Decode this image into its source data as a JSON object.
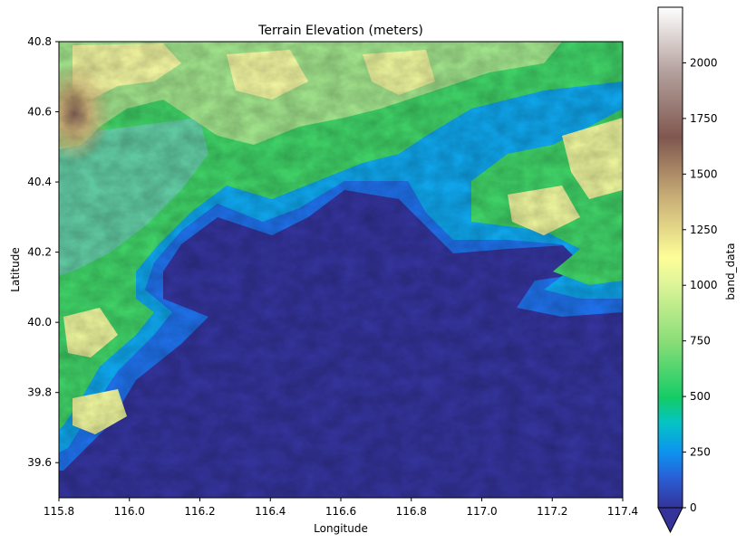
{
  "chart_data": {
    "type": "heatmap",
    "title": "Terrain Elevation (meters)",
    "xlabel": "Longitude",
    "ylabel": "Latitude",
    "xlim": [
      115.8,
      117.4
    ],
    "ylim": [
      39.5,
      40.8
    ],
    "x_ticks": [
      "115.8",
      "116.0",
      "116.2",
      "116.4",
      "116.6",
      "116.8",
      "117.0",
      "117.2",
      "117.4"
    ],
    "y_ticks": [
      "39.6",
      "39.8",
      "40.0",
      "40.2",
      "40.4",
      "40.6",
      "40.8"
    ],
    "colorbar": {
      "label": "band_data",
      "range": [
        0,
        2250
      ],
      "ticks": [
        "0",
        "250",
        "500",
        "750",
        "1000",
        "1250",
        "1500",
        "1750",
        "2000"
      ],
      "extend": "min",
      "colormap": "terrain"
    },
    "grid": false
  }
}
